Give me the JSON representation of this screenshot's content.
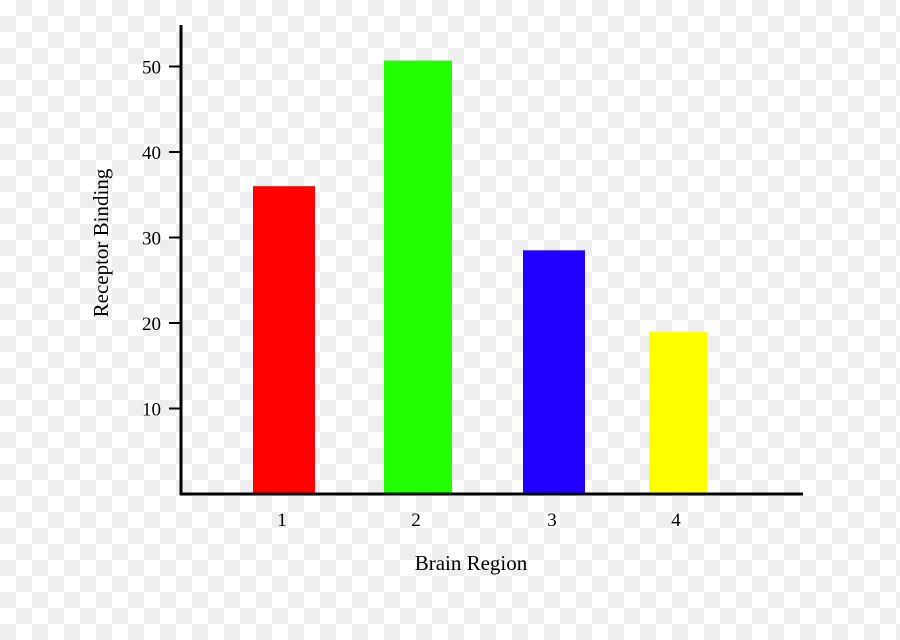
{
  "chart_data": {
    "type": "bar",
    "title": "",
    "xlabel": "Brain Region",
    "ylabel": "Receptor Binding",
    "categories": [
      "1",
      "2",
      "3",
      "4"
    ],
    "values": [
      36,
      50.7,
      28.5,
      19
    ],
    "colors": [
      "#ff0000",
      "#22ff00",
      "#2200ff",
      "#ffff00"
    ],
    "yticks": [
      10,
      20,
      30,
      40,
      50
    ],
    "ylim": [
      0,
      55
    ],
    "grid": false,
    "legend": "none"
  }
}
